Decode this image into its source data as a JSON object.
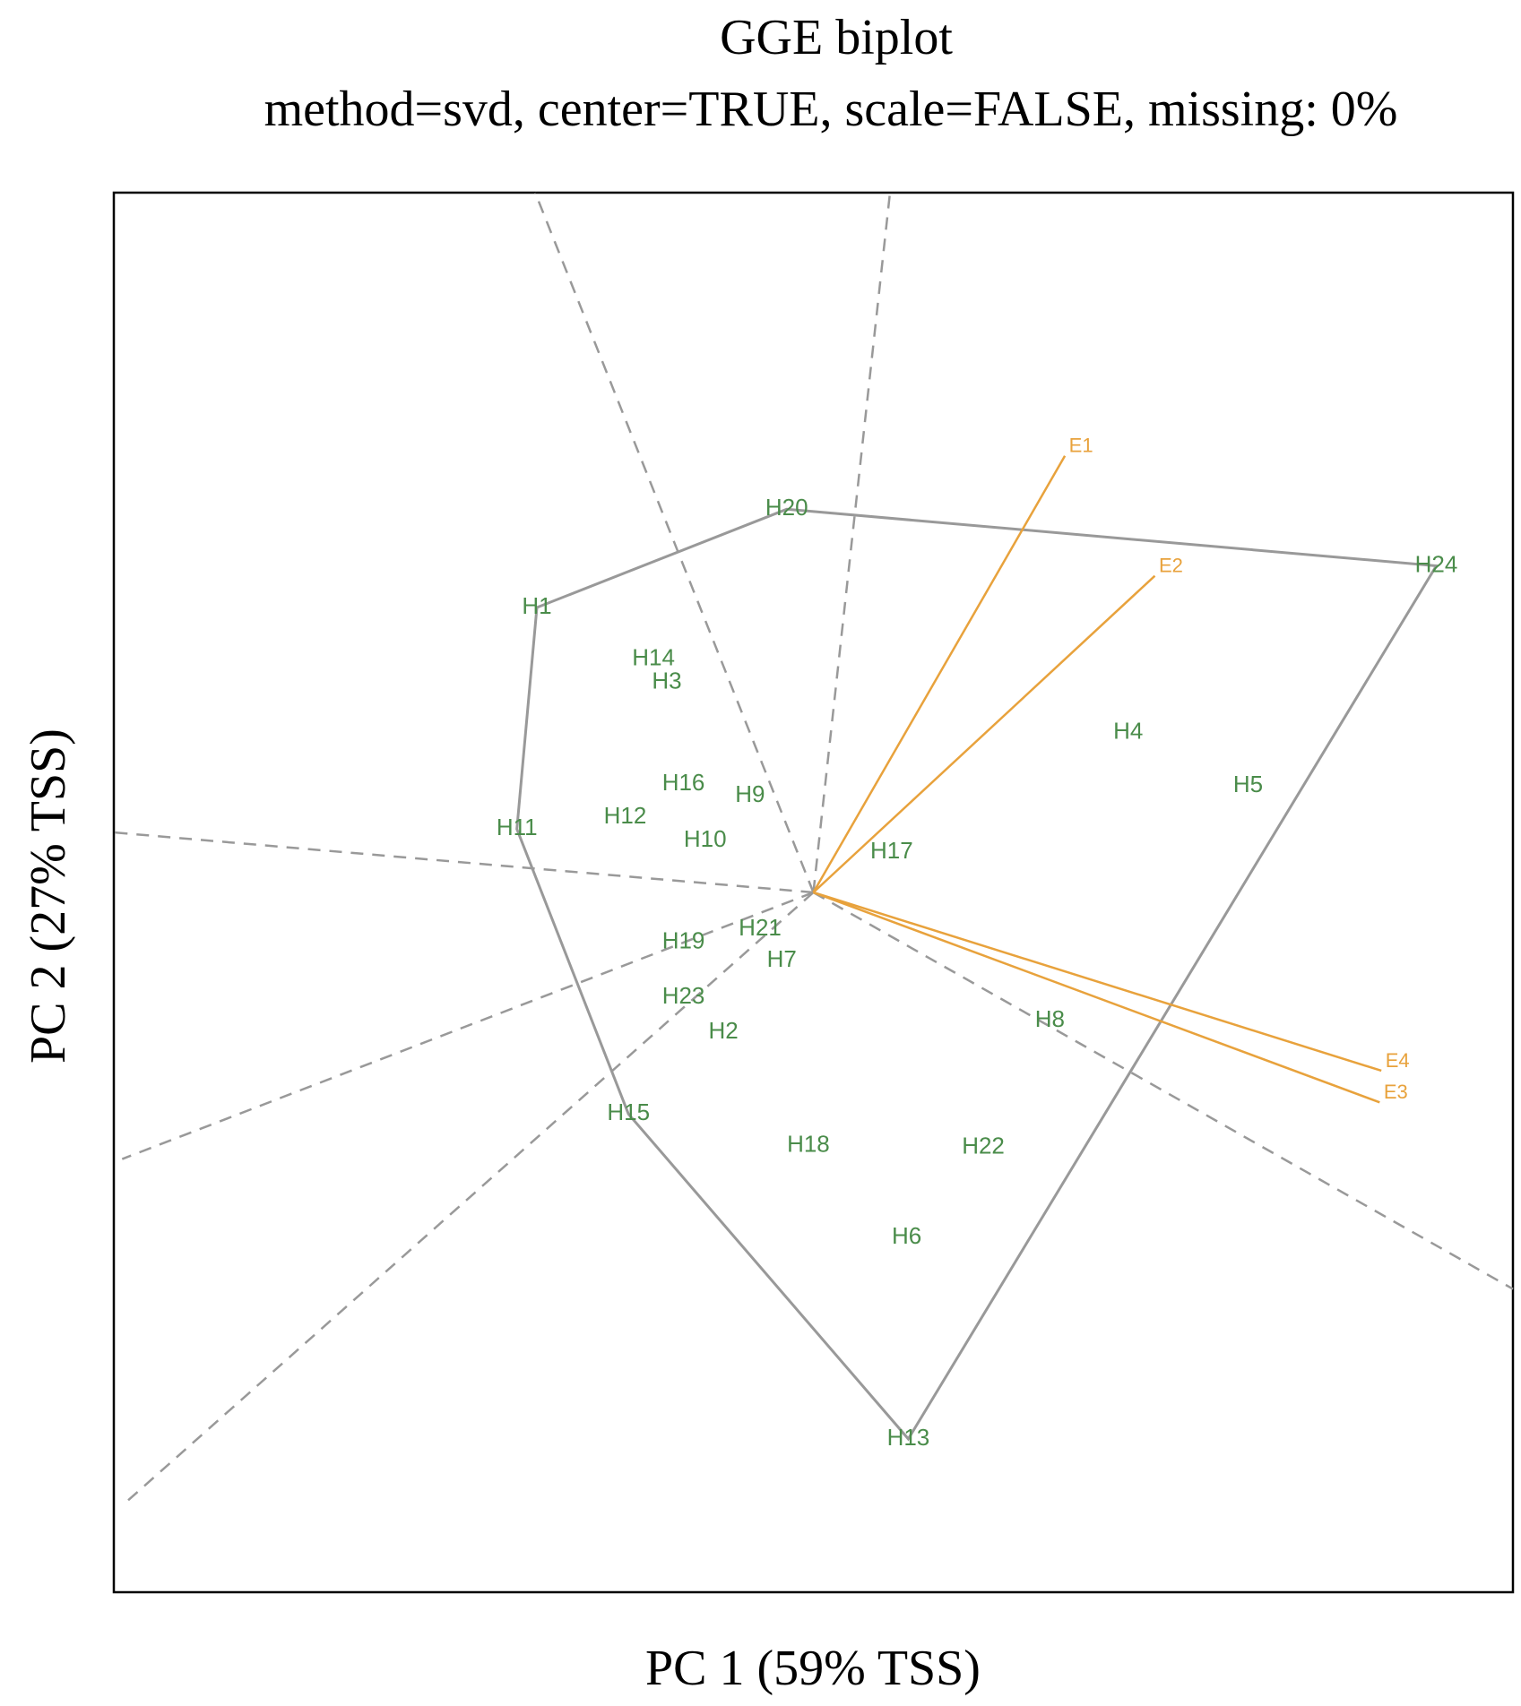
{
  "chart_data": {
    "type": "scatter",
    "title": "GGE biplot",
    "subtitle": "method=svd, center=TRUE, scale=FALSE, missing: 0%",
    "xlabel": "PC 1 (59% TSS)",
    "ylabel": "PC 2 (27% TSS)",
    "xlim": [
      -4.2,
      4.2
    ],
    "ylim": [
      -4.2,
      4.2
    ],
    "grid": false,
    "colors": {
      "genotype": "#4a8c4a",
      "environment": "#e8a23c",
      "hull": "#999999",
      "sector": "#999999",
      "frame": "#000000"
    },
    "genotypes": [
      {
        "label": "H1",
        "x": -1.66,
        "y": 1.71
      },
      {
        "label": "H2",
        "x": -0.54,
        "y": -0.84
      },
      {
        "label": "H3",
        "x": -0.88,
        "y": 1.26
      },
      {
        "label": "H4",
        "x": 1.89,
        "y": 0.96
      },
      {
        "label": "H5",
        "x": 2.61,
        "y": 0.64
      },
      {
        "label": "H6",
        "x": 0.56,
        "y": -2.07
      },
      {
        "label": "H7",
        "x": -0.19,
        "y": -0.41
      },
      {
        "label": "H8",
        "x": 1.42,
        "y": -0.77
      },
      {
        "label": "H9",
        "x": -0.38,
        "y": 0.58
      },
      {
        "label": "H10",
        "x": -0.65,
        "y": 0.31
      },
      {
        "label": "H11",
        "x": -1.78,
        "y": 0.38
      },
      {
        "label": "H12",
        "x": -1.13,
        "y": 0.45
      },
      {
        "label": "H13",
        "x": 0.57,
        "y": -3.28
      },
      {
        "label": "H14",
        "x": -0.96,
        "y": 1.4
      },
      {
        "label": "H15",
        "x": -1.11,
        "y": -1.33
      },
      {
        "label": "H16",
        "x": -0.78,
        "y": 0.65
      },
      {
        "label": "H17",
        "x": 0.47,
        "y": 0.24
      },
      {
        "label": "H18",
        "x": -0.03,
        "y": -1.52
      },
      {
        "label": "H19",
        "x": -0.78,
        "y": -0.3
      },
      {
        "label": "H20",
        "x": -0.16,
        "y": 2.3
      },
      {
        "label": "H21",
        "x": -0.32,
        "y": -0.22
      },
      {
        "label": "H22",
        "x": 1.02,
        "y": -1.53
      },
      {
        "label": "H23",
        "x": -0.78,
        "y": -0.63
      },
      {
        "label": "H24",
        "x": 3.74,
        "y": 1.96
      }
    ],
    "environments": [
      {
        "label": "E1",
        "x": 1.51,
        "y": 2.62
      },
      {
        "label": "E2",
        "x": 2.05,
        "y": 1.9
      },
      {
        "label": "E3",
        "x": 3.4,
        "y": -1.26
      },
      {
        "label": "E4",
        "x": 3.41,
        "y": -1.07
      }
    ],
    "hull": [
      "H1",
      "H20",
      "H24",
      "H13",
      "H15",
      "H11"
    ],
    "sector_rays": [
      {
        "x": -1.67,
        "y": 4.2
      },
      {
        "x": 0.46,
        "y": 4.2
      },
      {
        "x": -4.2,
        "y": 0.36
      },
      {
        "x": -4.15,
        "y": -1.6
      },
      {
        "x": -4.15,
        "y": -3.68
      },
      {
        "x": 4.2,
        "y": -2.38
      }
    ]
  }
}
